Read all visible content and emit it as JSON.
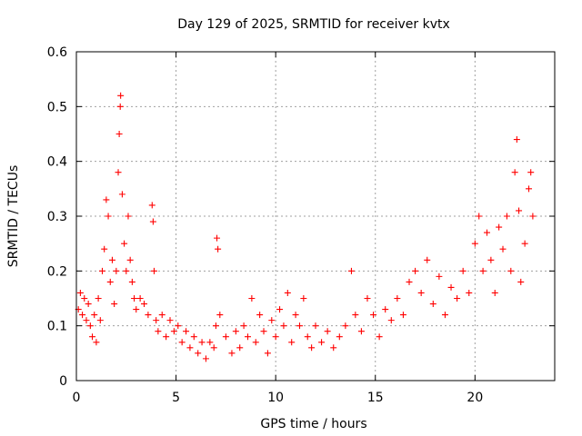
{
  "chart_data": {
    "type": "scatter",
    "title": "Day 129 of 2025, SRMTID for receiver kvtx",
    "xlabel": "GPS time / hours",
    "ylabel": "SRMTID / TECUs",
    "xlim": [
      0,
      24
    ],
    "ylim": [
      0,
      0.6
    ],
    "xticks": [
      0,
      5,
      10,
      15,
      20
    ],
    "xtick_labels": [
      "0",
      "5",
      "10",
      "15",
      "20"
    ],
    "yticks": [
      0,
      0.1,
      0.2,
      0.3,
      0.4,
      0.5,
      0.6
    ],
    "ytick_labels": [
      "0",
      "0.1",
      "0.2",
      "0.3",
      "0.4",
      "0.5",
      "0.6"
    ],
    "grid": true,
    "marker": "plus",
    "color": "#ff0000",
    "series": [
      {
        "name": "SRMTID",
        "points": [
          [
            0.1,
            0.13
          ],
          [
            0.2,
            0.16
          ],
          [
            0.3,
            0.12
          ],
          [
            0.4,
            0.15
          ],
          [
            0.5,
            0.11
          ],
          [
            0.6,
            0.14
          ],
          [
            0.7,
            0.1
          ],
          [
            0.8,
            0.08
          ],
          [
            0.9,
            0.12
          ],
          [
            1.0,
            0.07
          ],
          [
            1.1,
            0.15
          ],
          [
            1.2,
            0.11
          ],
          [
            1.3,
            0.2
          ],
          [
            1.4,
            0.24
          ],
          [
            1.5,
            0.33
          ],
          [
            1.6,
            0.3
          ],
          [
            1.7,
            0.18
          ],
          [
            1.8,
            0.22
          ],
          [
            1.9,
            0.14
          ],
          [
            2.0,
            0.2
          ],
          [
            2.1,
            0.38
          ],
          [
            2.15,
            0.45
          ],
          [
            2.2,
            0.5
          ],
          [
            2.22,
            0.52
          ],
          [
            2.3,
            0.34
          ],
          [
            2.4,
            0.25
          ],
          [
            2.5,
            0.2
          ],
          [
            2.6,
            0.3
          ],
          [
            2.7,
            0.22
          ],
          [
            2.8,
            0.18
          ],
          [
            2.9,
            0.15
          ],
          [
            3.0,
            0.13
          ],
          [
            3.2,
            0.15
          ],
          [
            3.4,
            0.14
          ],
          [
            3.6,
            0.12
          ],
          [
            3.8,
            0.32
          ],
          [
            3.85,
            0.29
          ],
          [
            3.9,
            0.2
          ],
          [
            4.0,
            0.11
          ],
          [
            4.1,
            0.09
          ],
          [
            4.3,
            0.12
          ],
          [
            4.5,
            0.08
          ],
          [
            4.7,
            0.11
          ],
          [
            4.9,
            0.09
          ],
          [
            5.1,
            0.1
          ],
          [
            5.3,
            0.07
          ],
          [
            5.5,
            0.09
          ],
          [
            5.7,
            0.06
          ],
          [
            5.9,
            0.08
          ],
          [
            6.1,
            0.05
          ],
          [
            6.3,
            0.07
          ],
          [
            6.5,
            0.04
          ],
          [
            6.7,
            0.07
          ],
          [
            6.9,
            0.06
          ],
          [
            7.0,
            0.1
          ],
          [
            7.05,
            0.26
          ],
          [
            7.1,
            0.24
          ],
          [
            7.2,
            0.12
          ],
          [
            7.5,
            0.08
          ],
          [
            7.8,
            0.05
          ],
          [
            8.0,
            0.09
          ],
          [
            8.2,
            0.06
          ],
          [
            8.4,
            0.1
          ],
          [
            8.6,
            0.08
          ],
          [
            8.8,
            0.15
          ],
          [
            9.0,
            0.07
          ],
          [
            9.2,
            0.12
          ],
          [
            9.4,
            0.09
          ],
          [
            9.6,
            0.05
          ],
          [
            9.8,
            0.11
          ],
          [
            10.0,
            0.08
          ],
          [
            10.2,
            0.13
          ],
          [
            10.4,
            0.1
          ],
          [
            10.6,
            0.16
          ],
          [
            10.8,
            0.07
          ],
          [
            11.0,
            0.12
          ],
          [
            11.2,
            0.1
          ],
          [
            11.4,
            0.15
          ],
          [
            11.6,
            0.08
          ],
          [
            11.8,
            0.06
          ],
          [
            12.0,
            0.1
          ],
          [
            12.3,
            0.07
          ],
          [
            12.6,
            0.09
          ],
          [
            12.9,
            0.06
          ],
          [
            13.2,
            0.08
          ],
          [
            13.5,
            0.1
          ],
          [
            13.8,
            0.2
          ],
          [
            14.0,
            0.12
          ],
          [
            14.3,
            0.09
          ],
          [
            14.6,
            0.15
          ],
          [
            14.9,
            0.12
          ],
          [
            15.2,
            0.08
          ],
          [
            15.5,
            0.13
          ],
          [
            15.8,
            0.11
          ],
          [
            16.1,
            0.15
          ],
          [
            16.4,
            0.12
          ],
          [
            16.7,
            0.18
          ],
          [
            17.0,
            0.2
          ],
          [
            17.3,
            0.16
          ],
          [
            17.6,
            0.22
          ],
          [
            17.9,
            0.14
          ],
          [
            18.2,
            0.19
          ],
          [
            18.5,
            0.12
          ],
          [
            18.8,
            0.17
          ],
          [
            19.1,
            0.15
          ],
          [
            19.4,
            0.2
          ],
          [
            19.7,
            0.16
          ],
          [
            20.0,
            0.25
          ],
          [
            20.2,
            0.3
          ],
          [
            20.4,
            0.2
          ],
          [
            20.6,
            0.27
          ],
          [
            20.8,
            0.22
          ],
          [
            21.0,
            0.16
          ],
          [
            21.2,
            0.28
          ],
          [
            21.4,
            0.24
          ],
          [
            21.6,
            0.3
          ],
          [
            21.8,
            0.2
          ],
          [
            22.0,
            0.38
          ],
          [
            22.1,
            0.44
          ],
          [
            22.2,
            0.31
          ],
          [
            22.3,
            0.18
          ],
          [
            22.5,
            0.25
          ],
          [
            22.7,
            0.35
          ],
          [
            22.8,
            0.38
          ],
          [
            22.9,
            0.3
          ]
        ]
      }
    ]
  }
}
